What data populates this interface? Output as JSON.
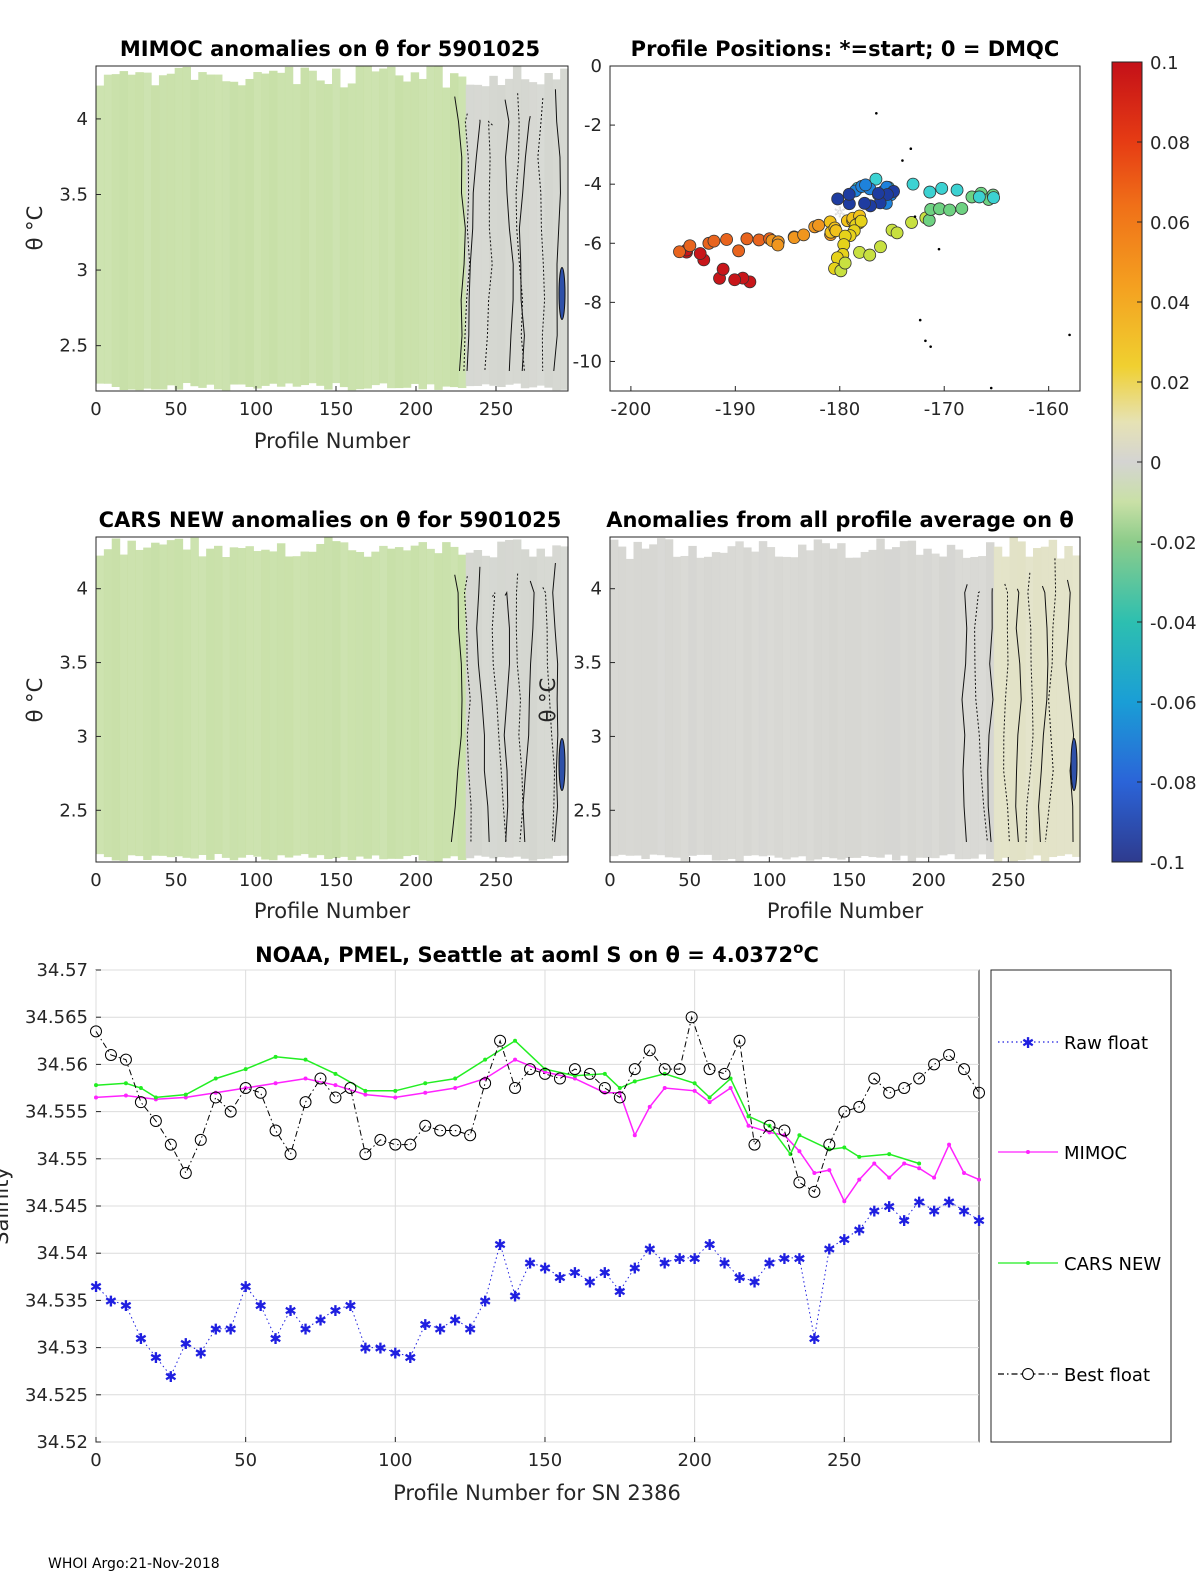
{
  "footer": "WHOI Argo:21-Nov-2018",
  "colorbar": {
    "ticks": [
      "0.1",
      "0.08",
      "0.06",
      "0.04",
      "0.02",
      "0",
      "-0.02",
      "-0.04",
      "-0.06",
      "-0.08",
      "-0.1"
    ],
    "range": [
      -0.1,
      0.1
    ],
    "colormap": "parula-style blue to green to yellow to red"
  },
  "chart_data": [
    {
      "id": "mimoc",
      "type": "heatmap",
      "title": "MIMOC anomalies on θ  for 5901025",
      "xlabel": "Profile Number",
      "ylabel": "θ °C",
      "xlim": [
        0,
        295
      ],
      "ylim": [
        2.2,
        4.35
      ],
      "xticks": [
        "0",
        "50",
        "100",
        "150",
        "200",
        "250"
      ],
      "yticks": [
        "2.5",
        "3",
        "3.5",
        "4"
      ],
      "dominant_anomaly": -0.02,
      "colors": {
        "fill": "#c8e0a8",
        "late_fill": "#d4d6d0"
      }
    },
    {
      "id": "positions",
      "type": "scatter",
      "title": "Profile Positions: *=start; 0 = DMQC",
      "xlim": [
        -202,
        -157
      ],
      "ylim": [
        -11,
        0
      ],
      "xticks": [
        "-200",
        "-190",
        "-180",
        "-170",
        "-160"
      ],
      "yticks": [
        "0",
        "-2",
        "-4",
        "-6",
        "-8",
        "-10"
      ],
      "segments": [
        {
          "from": [
            -188.5,
            -7.5
          ],
          "to": [
            -195.0,
            -6.2
          ],
          "color": "#c8161a"
        },
        {
          "from": [
            -195.0,
            -6.2
          ],
          "to": [
            -187.0,
            -6.0
          ],
          "color": "#e8641e"
        },
        {
          "from": [
            -187.0,
            -6.0
          ],
          "to": [
            -181.0,
            -5.5
          ],
          "color": "#f0961e"
        },
        {
          "from": [
            -181.0,
            -5.5
          ],
          "to": [
            -178.0,
            -5.2
          ],
          "color": "#f2c21a"
        },
        {
          "from": [
            -178.0,
            -5.2
          ],
          "to": [
            -180.0,
            -6.8
          ],
          "color": "#e6d21a"
        },
        {
          "from": [
            -180.0,
            -6.8
          ],
          "to": [
            -172.0,
            -5.1
          ],
          "color": "#c8e040"
        },
        {
          "from": [
            -172.0,
            -5.1
          ],
          "to": [
            -165.0,
            -4.3
          ],
          "color": "#6ed282"
        },
        {
          "from": [
            -165.0,
            -4.3
          ],
          "to": [
            -178.5,
            -4.0
          ],
          "color": "#3cd2d2"
        },
        {
          "from": [
            -178.5,
            -4.0
          ],
          "to": [
            -175.0,
            -4.4
          ],
          "color": "#1e82dc"
        },
        {
          "from": [
            -175.0,
            -4.4
          ],
          "to": [
            -180.0,
            -4.6
          ],
          "color": "#1e3ca0"
        }
      ],
      "start_marker": [
        -180.0,
        -5.0
      ],
      "dmqc_dots": [
        [
          -176.5,
          -1.6
        ],
        [
          -173.2,
          -2.8
        ],
        [
          -174.0,
          -3.2
        ],
        [
          -172.3,
          -8.6
        ],
        [
          -171.8,
          -9.3
        ],
        [
          -171.3,
          -9.5
        ],
        [
          -165.5,
          -10.9
        ],
        [
          -158.0,
          -9.1
        ],
        [
          -172.8,
          -5.1
        ],
        [
          -170.5,
          -6.2
        ]
      ]
    },
    {
      "id": "cars",
      "type": "heatmap",
      "title": "CARS NEW anomalies on θ for 5901025",
      "xlabel": "Profile Number",
      "ylabel": "θ °C",
      "xlim": [
        0,
        295
      ],
      "ylim": [
        2.15,
        4.35
      ],
      "xticks": [
        "0",
        "50",
        "100",
        "150",
        "200",
        "250"
      ],
      "yticks": [
        "2.5",
        "3",
        "3.5",
        "4"
      ],
      "dominant_anomaly": -0.02,
      "colors": {
        "fill": "#c8e0a8",
        "late_fill": "#d4d6d0"
      }
    },
    {
      "id": "allavg",
      "type": "heatmap",
      "title": "Anomalies from all profile average on θ",
      "xlabel": "Profile Number",
      "ylabel": "θ °C",
      "xlim": [
        0,
        295
      ],
      "ylim": [
        2.15,
        4.35
      ],
      "xticks": [
        "0",
        "50",
        "100",
        "150",
        "200",
        "250"
      ],
      "yticks": [
        "2.5",
        "3",
        "3.5",
        "4"
      ],
      "dominant_anomaly": 0.0,
      "colors": {
        "fill": "#d6d6d2",
        "late_fill": "#e2e2c6"
      }
    },
    {
      "id": "salinity",
      "type": "line",
      "title": "NOAA, PMEL, Seattle at aoml S on θ = 4.0372",
      "title_sup": "o",
      "title_tail": "C",
      "xlabel": "Profile Number for SN 2386",
      "ylabel": "Salinity",
      "xlim": [
        0,
        295
      ],
      "ylim": [
        34.52,
        34.57
      ],
      "xticks": [
        "0",
        "50",
        "100",
        "150",
        "200",
        "250"
      ],
      "yticks": [
        "34.57",
        "34.565",
        "34.56",
        "34.555",
        "34.55",
        "34.545",
        "34.54",
        "34.535",
        "34.53",
        "34.525",
        "34.52"
      ],
      "grid": true,
      "legend_position": "outside-right",
      "series": [
        {
          "name": "Raw float",
          "color": "#1f1fe0",
          "style": "dotted-asterisk",
          "points": [
            [
              0,
              34.5365
            ],
            [
              5,
              34.535
            ],
            [
              10,
              34.5345
            ],
            [
              15,
              34.531
            ],
            [
              20,
              34.529
            ],
            [
              25,
              34.527
            ],
            [
              30,
              34.5305
            ],
            [
              35,
              34.5295
            ],
            [
              40,
              34.532
            ],
            [
              45,
              34.532
            ],
            [
              50,
              34.5365
            ],
            [
              55,
              34.5345
            ],
            [
              60,
              34.531
            ],
            [
              65,
              34.534
            ],
            [
              70,
              34.532
            ],
            [
              75,
              34.533
            ],
            [
              80,
              34.534
            ],
            [
              85,
              34.5345
            ],
            [
              90,
              34.53
            ],
            [
              95,
              34.53
            ],
            [
              100,
              34.5295
            ],
            [
              105,
              34.529
            ],
            [
              110,
              34.5325
            ],
            [
              115,
              34.532
            ],
            [
              120,
              34.533
            ],
            [
              125,
              34.532
            ],
            [
              130,
              34.535
            ],
            [
              135,
              34.541
            ],
            [
              140,
              34.5355
            ],
            [
              145,
              34.539
            ],
            [
              150,
              34.5385
            ],
            [
              155,
              34.5375
            ],
            [
              160,
              34.538
            ],
            [
              165,
              34.537
            ],
            [
              170,
              34.538
            ],
            [
              175,
              34.536
            ],
            [
              180,
              34.5385
            ],
            [
              185,
              34.5405
            ],
            [
              190,
              34.539
            ],
            [
              195,
              34.5395
            ],
            [
              200,
              34.5395
            ],
            [
              205,
              34.541
            ],
            [
              210,
              34.539
            ],
            [
              215,
              34.5375
            ],
            [
              220,
              34.537
            ],
            [
              225,
              34.539
            ],
            [
              230,
              34.5395
            ],
            [
              235,
              34.5395
            ],
            [
              240,
              34.531
            ],
            [
              245,
              34.5405
            ],
            [
              250,
              34.5415
            ],
            [
              255,
              34.5425
            ],
            [
              260,
              34.5445
            ],
            [
              265,
              34.545
            ],
            [
              270,
              34.5435
            ],
            [
              275,
              34.5455
            ],
            [
              280,
              34.5445
            ],
            [
              285,
              34.5455
            ],
            [
              290,
              34.5445
            ],
            [
              295,
              34.5435
            ]
          ]
        },
        {
          "name": "MIMOC",
          "color": "#ff22ff",
          "style": "solid-dot",
          "points": [
            [
              0,
              34.5565
            ],
            [
              10,
              34.5567
            ],
            [
              20,
              34.5563
            ],
            [
              30,
              34.5565
            ],
            [
              40,
              34.557
            ],
            [
              50,
              34.5575
            ],
            [
              60,
              34.558
            ],
            [
              70,
              34.5585
            ],
            [
              80,
              34.5578
            ],
            [
              90,
              34.5568
            ],
            [
              100,
              34.5565
            ],
            [
              110,
              34.557
            ],
            [
              120,
              34.5575
            ],
            [
              130,
              34.5585
            ],
            [
              140,
              34.5605
            ],
            [
              150,
              34.5592
            ],
            [
              160,
              34.5585
            ],
            [
              170,
              34.557
            ],
            [
              175,
              34.557
            ],
            [
              180,
              34.5525
            ],
            [
              185,
              34.5555
            ],
            [
              190,
              34.5575
            ],
            [
              200,
              34.5572
            ],
            [
              205,
              34.556
            ],
            [
              212,
              34.5575
            ],
            [
              218,
              34.5535
            ],
            [
              225,
              34.5528
            ],
            [
              230,
              34.5525
            ],
            [
              235,
              34.5508
            ],
            [
              240,
              34.5485
            ],
            [
              245,
              34.5488
            ],
            [
              250,
              34.5455
            ],
            [
              255,
              34.5478
            ],
            [
              260,
              34.5495
            ],
            [
              265,
              34.548
            ],
            [
              270,
              34.5495
            ],
            [
              275,
              34.549
            ],
            [
              280,
              34.548
            ],
            [
              285,
              34.5515
            ],
            [
              290,
              34.5485
            ],
            [
              295,
              34.5478
            ]
          ]
        },
        {
          "name": "CARS NEW",
          "color": "#22ee22",
          "style": "solid-dot",
          "points": [
            [
              0,
              34.5578
            ],
            [
              10,
              34.558
            ],
            [
              15,
              34.5575
            ],
            [
              20,
              34.5565
            ],
            [
              30,
              34.5568
            ],
            [
              40,
              34.5585
            ],
            [
              50,
              34.5595
            ],
            [
              60,
              34.5608
            ],
            [
              70,
              34.5605
            ],
            [
              80,
              34.559
            ],
            [
              90,
              34.5572
            ],
            [
              100,
              34.5572
            ],
            [
              110,
              34.558
            ],
            [
              120,
              34.5585
            ],
            [
              130,
              34.5605
            ],
            [
              140,
              34.5625
            ],
            [
              150,
              34.5595
            ],
            [
              160,
              34.5588
            ],
            [
              170,
              34.559
            ],
            [
              175,
              34.5575
            ],
            [
              180,
              34.5582
            ],
            [
              190,
              34.559
            ],
            [
              200,
              34.558
            ],
            [
              205,
              34.5565
            ],
            [
              212,
              34.5585
            ],
            [
              218,
              34.5545
            ],
            [
              225,
              34.5535
            ],
            [
              232,
              34.5505
            ],
            [
              235,
              34.5525
            ],
            [
              245,
              34.551
            ],
            [
              250,
              34.5512
            ],
            [
              255,
              34.5502
            ],
            [
              265,
              34.5505
            ],
            [
              275,
              34.5495
            ]
          ]
        },
        {
          "name": "Best float",
          "color": "#000000",
          "style": "dashdot-circle",
          "points": [
            [
              0,
              34.5635
            ],
            [
              5,
              34.561
            ],
            [
              10,
              34.5605
            ],
            [
              15,
              34.556
            ],
            [
              20,
              34.554
            ],
            [
              25,
              34.5515
            ],
            [
              30,
              34.5485
            ],
            [
              35,
              34.552
            ],
            [
              40,
              34.5565
            ],
            [
              45,
              34.555
            ],
            [
              50,
              34.5575
            ],
            [
              55,
              34.557
            ],
            [
              60,
              34.553
            ],
            [
              65,
              34.5505
            ],
            [
              70,
              34.556
            ],
            [
              75,
              34.5585
            ],
            [
              80,
              34.5565
            ],
            [
              85,
              34.5575
            ],
            [
              90,
              34.5505
            ],
            [
              95,
              34.552
            ],
            [
              100,
              34.5515
            ],
            [
              105,
              34.5515
            ],
            [
              110,
              34.5535
            ],
            [
              115,
              34.553
            ],
            [
              120,
              34.553
            ],
            [
              125,
              34.5525
            ],
            [
              130,
              34.558
            ],
            [
              135,
              34.5625
            ],
            [
              140,
              34.5575
            ],
            [
              145,
              34.5595
            ],
            [
              150,
              34.559
            ],
            [
              155,
              34.5585
            ],
            [
              160,
              34.5595
            ],
            [
              165,
              34.559
            ],
            [
              170,
              34.5575
            ],
            [
              175,
              34.5565
            ],
            [
              180,
              34.5595
            ],
            [
              185,
              34.5615
            ],
            [
              190,
              34.5595
            ],
            [
              195,
              34.5595
            ],
            [
              199,
              34.565
            ],
            [
              205,
              34.5595
            ],
            [
              210,
              34.559
            ],
            [
              215,
              34.5625
            ],
            [
              220,
              34.5515
            ],
            [
              225,
              34.5535
            ],
            [
              230,
              34.553
            ],
            [
              235,
              34.5475
            ],
            [
              240,
              34.5465
            ],
            [
              245,
              34.5515
            ],
            [
              250,
              34.555
            ],
            [
              255,
              34.5555
            ],
            [
              260,
              34.5585
            ],
            [
              265,
              34.557
            ],
            [
              270,
              34.5575
            ],
            [
              275,
              34.5585
            ],
            [
              280,
              34.56
            ],
            [
              285,
              34.561
            ],
            [
              290,
              34.5595
            ],
            [
              295,
              34.557
            ]
          ]
        }
      ]
    }
  ]
}
